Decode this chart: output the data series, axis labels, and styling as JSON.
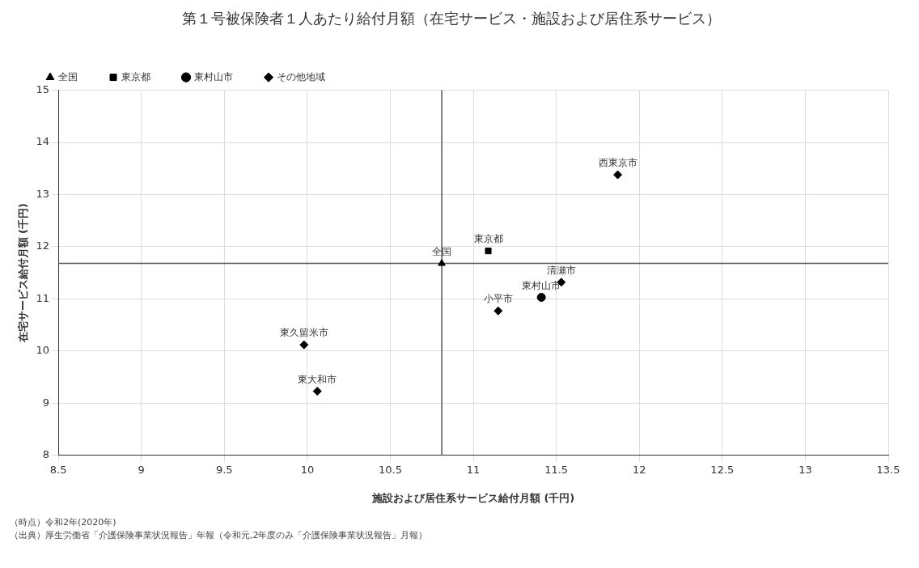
{
  "chart_data": {
    "type": "scatter",
    "title": "第１号被保険者１人あたり給付月額（在宅サービス・施設および居住系サービス）",
    "xlabel": "施設および居住系サービス給付月額 (千円)",
    "ylabel": "在宅サービス給付月額 (千円)",
    "series": [
      {
        "name": "全国",
        "color": "#000000",
        "marker": "triangle",
        "x": [
          10.81
        ],
        "values": [
          11.68
        ]
      },
      {
        "name": "東京都",
        "color": "#000000",
        "marker": "square",
        "x": [
          11.09
        ],
        "values": [
          11.92
        ]
      },
      {
        "name": "東村山市",
        "color": "#000000",
        "marker": "circle",
        "x": [
          11.41
        ],
        "values": [
          11.03
        ]
      },
      {
        "name": "その他地域",
        "color": "#000000",
        "marker": "diamond",
        "x": [
          11.53,
          11.15,
          9.98,
          10.06,
          11.87
        ],
        "values": [
          11.32,
          10.77,
          10.12,
          9.23,
          13.38
        ]
      }
    ],
    "xlim": [
      8.5,
      13.5
    ],
    "xticks": [
      8.5,
      9,
      9.5,
      10,
      10.5,
      11,
      11.5,
      12,
      12.5,
      13,
      13.5
    ],
    "ylim": [
      8,
      15
    ],
    "yticks": [
      8,
      9,
      10,
      11,
      12,
      13,
      14,
      15
    ],
    "grid": true,
    "legend": "top left",
    "ref_lines": [
      {
        "axis": "x",
        "value": 10.81,
        "color": "#555555"
      },
      {
        "axis": "y",
        "value": 11.68,
        "color": "#555555"
      }
    ],
    "annotations": [
      {
        "text": "全国",
        "x": 10.81,
        "y": 11.68
      },
      {
        "text": "東京都",
        "x": 11.09,
        "y": 11.92
      },
      {
        "text": "東村山市",
        "x": 11.41,
        "y": 11.03
      },
      {
        "text": "清瀬市",
        "x": 11.53,
        "y": 11.32
      },
      {
        "text": "小平市",
        "x": 11.15,
        "y": 10.77
      },
      {
        "text": "東久留米市",
        "x": 9.98,
        "y": 10.12
      },
      {
        "text": "東大和市",
        "x": 10.06,
        "y": 9.23
      },
      {
        "text": "西東京市",
        "x": 11.87,
        "y": 13.38
      },
      "（時点）令和2年(2020年)",
      "（出典）厚生労働省「介護保険事業状況報告」年報（令和元,2年度のみ「介護保険事業状況報告」月報）"
    ]
  }
}
